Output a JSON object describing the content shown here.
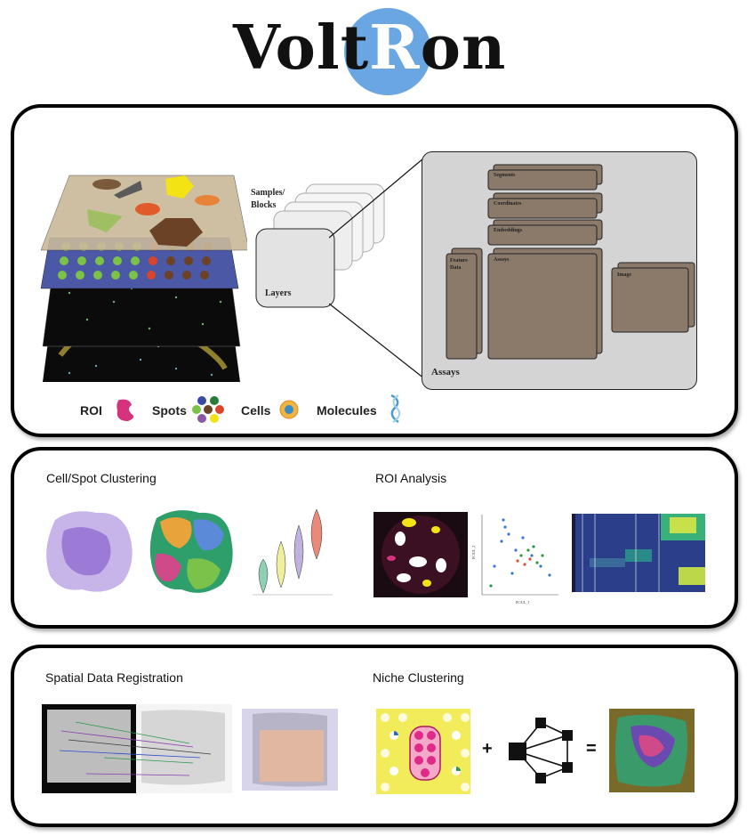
{
  "logo": {
    "prefix": "Volt",
    "highlight": "R",
    "suffix": "on"
  },
  "panel1": {
    "samples_label_line1": "Samples/",
    "samples_label_line2": "Blocks",
    "layers_label": "Layers",
    "assays_label": "Assays",
    "assay_items": {
      "segments": "Segments",
      "coordinates": "Coordinates",
      "embeddings": "Embeddings",
      "feature_data_line1": "Feature",
      "feature_data_line2": "Data",
      "assays": "Assays",
      "image": "Image"
    },
    "legend": {
      "roi": "ROI",
      "spots": "Spots",
      "cells": "Cells",
      "molecules": "Molecules"
    }
  },
  "panel2": {
    "left_title": "Cell/Spot Clustering",
    "right_title": "ROI Analysis",
    "scatter_xlabel": "PC/UL_1",
    "scatter_ylabel": "PC/UL_2"
  },
  "panel3": {
    "left_title": "Spatial Data Registration",
    "right_title": "Niche Clustering",
    "plus": "+",
    "equals": "="
  },
  "colors": {
    "logo_circle": "#6aa6e2",
    "assay_box": "#8b7a6a",
    "assays_panel": "#d4d4d4",
    "roi_pink": "#d6337e"
  }
}
